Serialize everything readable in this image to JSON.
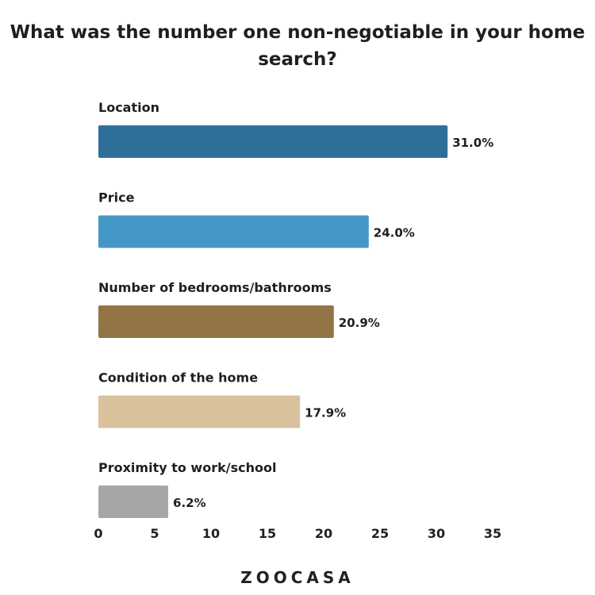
{
  "chart_data": {
    "type": "bar",
    "orientation": "horizontal",
    "title": "What was the number one non-negotiable in your home search?",
    "categories": [
      "Location",
      "Price",
      "Number of bedrooms/bathrooms",
      "Condition of the home",
      "Proximity to work/school"
    ],
    "values": [
      31.0,
      24.0,
      20.9,
      17.9,
      6.2
    ],
    "data_labels": [
      "31.0%",
      "24.0%",
      "20.9%",
      "17.9%",
      "6.2%"
    ],
    "colors": [
      "#2e6f9a",
      "#4597c8",
      "#937446",
      "#d9c19c",
      "#a5a6a8"
    ],
    "xlim": [
      0,
      35
    ],
    "xticks": [
      0,
      5,
      10,
      15,
      20,
      25,
      30,
      35
    ],
    "grid": false,
    "xlabel": "",
    "ylabel": ""
  },
  "branding": {
    "logo": "ZOOCASA"
  }
}
